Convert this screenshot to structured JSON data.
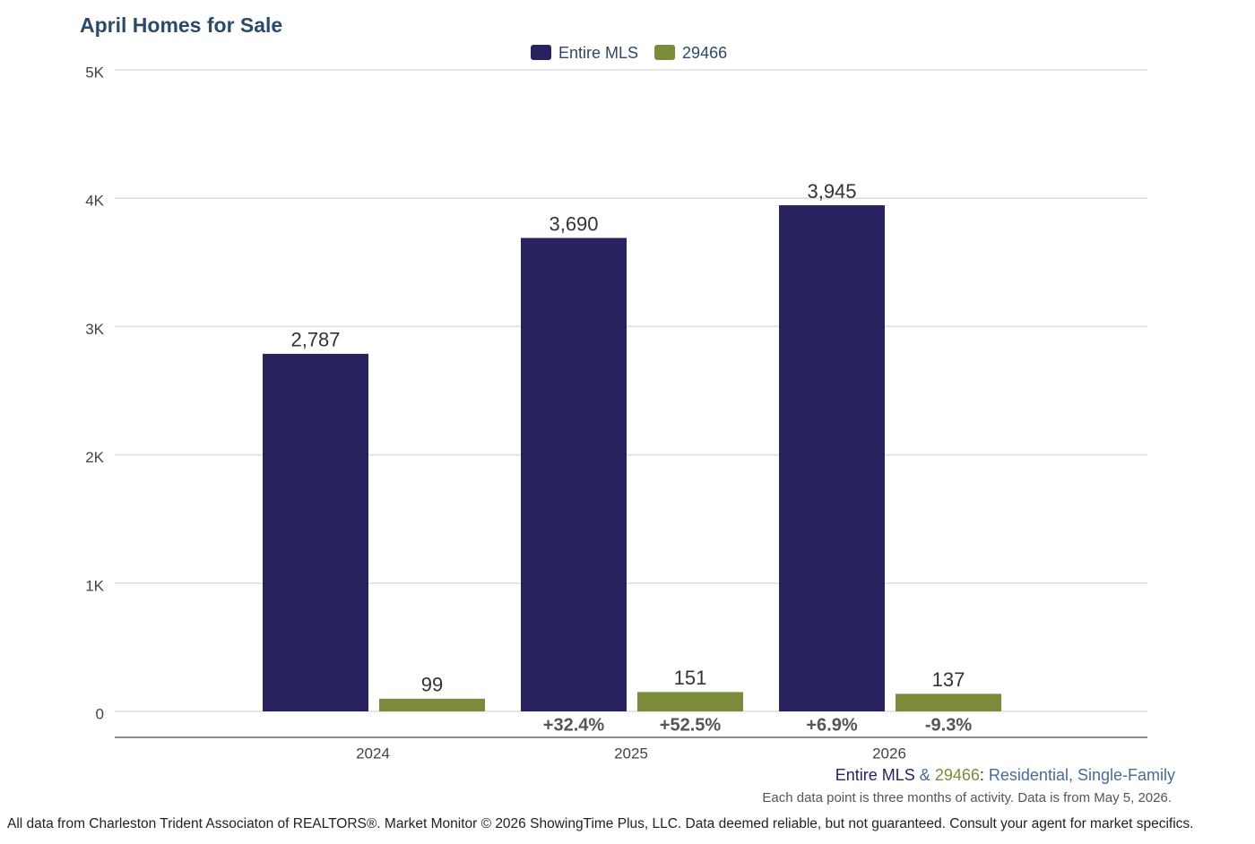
{
  "chart_data": {
    "type": "bar",
    "title": "April Homes for Sale",
    "categories": [
      "2024",
      "2025",
      "2026"
    ],
    "series": [
      {
        "name": "Entire MLS",
        "color": "#27235f",
        "values": [
          2787,
          3690,
          3945
        ],
        "value_labels": [
          "2,787",
          "3,690",
          "3,945"
        ],
        "changes": [
          null,
          "+32.4%",
          "+6.9%"
        ]
      },
      {
        "name": "29466",
        "color": "#7a8c3a",
        "values": [
          99,
          151,
          137
        ],
        "value_labels": [
          "99",
          "151",
          "137"
        ],
        "changes": [
          null,
          "+52.5%",
          "-9.3%"
        ]
      }
    ],
    "ylim": [
      0,
      5000
    ],
    "yticks": [
      0,
      {
        "value": 1000,
        "label": "1K"
      },
      {
        "value": 2000,
        "label": "2K"
      },
      {
        "value": 3000,
        "label": "3K"
      },
      {
        "value": 4000,
        "label": "4K"
      },
      {
        "value": 5000,
        "label": "5K"
      }
    ],
    "grid": true,
    "legend": "top",
    "note": {
      "joiner": "&",
      "after": ":",
      "segment": "Residential, Single-Family"
    },
    "period_note": "Each data point is three months of activity. Data is from May 5, 2026.",
    "source": "All data from Charleston Trident Associaton of REALTORS®. Market Monitor © 2026 ShowingTime Plus, LLC. Data deemed reliable, but not guaranteed. Consult your agent for market specifics."
  }
}
